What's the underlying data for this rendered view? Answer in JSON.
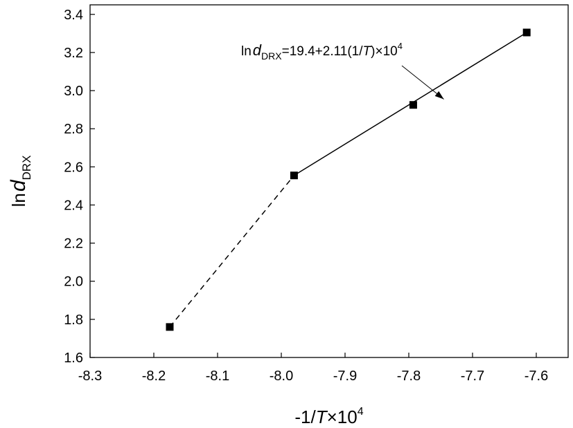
{
  "chart_data": {
    "type": "scatter",
    "x_axis": {
      "range": [
        -8.3,
        -7.55
      ],
      "ticks": [
        -8.3,
        -8.2,
        -8.1,
        -8.0,
        -7.9,
        -7.8,
        -7.7,
        -7.6
      ],
      "tick_labels": [
        "-8.3",
        "-8.2",
        "-8.1",
        "-8.0",
        "-7.9",
        "-7.8",
        "-7.7",
        "-7.6"
      ],
      "label": {
        "prefix": "-1/",
        "var": "T",
        "times": "×10",
        "exp": "4"
      }
    },
    "y_axis": {
      "range": [
        1.6,
        3.45
      ],
      "ticks": [
        1.6,
        1.8,
        2.0,
        2.2,
        2.4,
        2.6,
        2.8,
        3.0,
        3.2,
        3.4
      ],
      "tick_labels": [
        "1.6",
        "1.8",
        "2.0",
        "2.2",
        "2.4",
        "2.6",
        "2.8",
        "3.0",
        "3.2",
        "3.4"
      ],
      "label": {
        "main": "ln",
        "var": "d",
        "sub": "DRX"
      }
    },
    "grid": false,
    "points": [
      {
        "x": -8.175,
        "y": 1.76
      },
      {
        "x": -7.98,
        "y": 2.555
      },
      {
        "x": -7.793,
        "y": 2.925
      },
      {
        "x": -7.615,
        "y": 3.305
      }
    ],
    "fit_line": {
      "style": "solid",
      "x": [
        -7.98,
        -7.615
      ],
      "y": [
        2.555,
        3.305
      ]
    },
    "extension_line": {
      "style": "dashed",
      "x": [
        -8.175,
        -7.98
      ],
      "y": [
        1.76,
        2.555
      ]
    },
    "annotation": {
      "ln": "ln",
      "var": "d",
      "sub": "DRX",
      "equation": "=19.4+2.11(1/",
      "equation_var": "T",
      "equation_tail": ")×10",
      "exp": "4",
      "arrow_to": {
        "x": -7.745,
        "y": 2.955
      }
    }
  }
}
